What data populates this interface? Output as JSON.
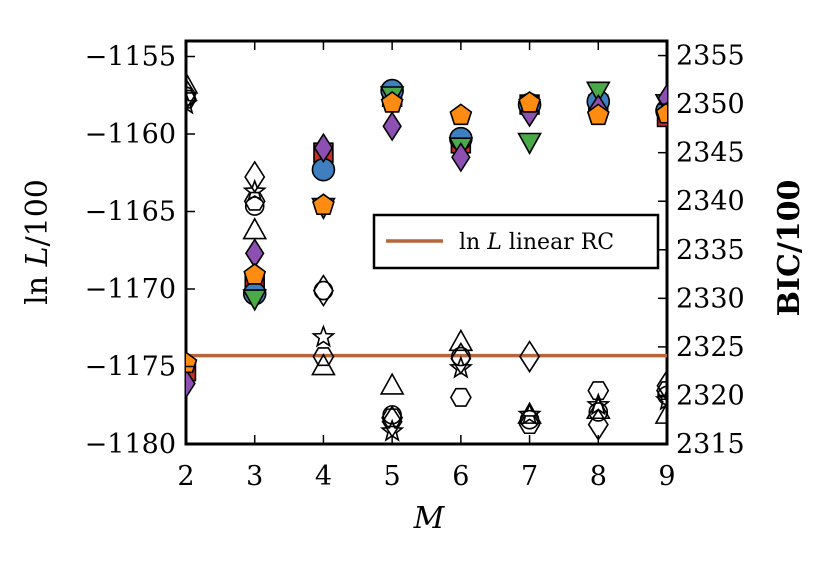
{
  "chart_data": {
    "type": "scatter",
    "x_axis": {
      "label": "M",
      "lim": [
        2,
        9
      ],
      "ticks": [
        2,
        3,
        4,
        5,
        6,
        7,
        8,
        9
      ],
      "tick_labels": [
        "2",
        "3",
        "4",
        "5",
        "6",
        "7",
        "8",
        "9"
      ]
    },
    "y_left_axis": {
      "label": "ln L/100",
      "lim": [
        -1180,
        -1154
      ],
      "ticks": [
        -1180,
        -1175,
        -1170,
        -1165,
        -1160,
        -1155
      ],
      "tick_labels": [
        "−1180",
        "−1175",
        "−1170",
        "−1165",
        "−1160",
        "−1155"
      ]
    },
    "y_right_axis": {
      "label": "BIC/100",
      "lim": [
        2315,
        2356.5
      ],
      "ticks": [
        2315,
        2320,
        2325,
        2330,
        2335,
        2340,
        2345,
        2350,
        2355
      ],
      "tick_labels": [
        "2315",
        "2320",
        "2325",
        "2330",
        "2335",
        "2340",
        "2345",
        "2350",
        "2355"
      ]
    },
    "legend": {
      "placement": "center-right",
      "entries": [
        {
          "label": "ln L linear RC",
          "color": "#b5663a"
        }
      ]
    },
    "reference_line": {
      "name": "ln L linear RC",
      "y": -1174.3,
      "color": "#b5663a"
    },
    "colors": {
      "blue": "#3f7fbf",
      "red": "#cf2b2b",
      "green": "#4aaa4a",
      "purple": "#8e4fb2",
      "orange": "#ff8c12",
      "axis": "#000000"
    },
    "filled_series_lnL": [
      {
        "marker": "square",
        "color": "red",
        "points": [
          [
            2,
            -1175.3
          ],
          [
            3,
            -1169.5
          ],
          [
            4,
            -1161.2
          ],
          [
            5,
            -1157.6
          ],
          [
            6,
            -1160.6
          ],
          [
            7,
            -1158.1
          ],
          [
            8,
            -1158.1
          ],
          [
            9,
            -1158.9
          ]
        ]
      },
      {
        "marker": "circle",
        "color": "blue",
        "points": [
          [
            3,
            -1170.3
          ],
          [
            4,
            -1162.3
          ],
          [
            5,
            -1157.2
          ],
          [
            6,
            -1160.3
          ],
          [
            7,
            -1158.1
          ],
          [
            8,
            -1157.9
          ],
          [
            9,
            -1158.5
          ]
        ]
      },
      {
        "marker": "triangle-down",
        "color": "green",
        "points": [
          [
            3,
            -1170.6
          ],
          [
            4,
            -1164.7
          ],
          [
            5,
            -1157.5
          ],
          [
            6,
            -1160.8
          ],
          [
            7,
            -1160.5
          ],
          [
            8,
            -1157.2
          ],
          [
            9,
            -1158.0
          ]
        ]
      },
      {
        "marker": "diamond",
        "color": "purple",
        "points": [
          [
            2,
            -1176.1
          ],
          [
            3,
            -1167.7
          ],
          [
            4,
            -1160.9
          ],
          [
            5,
            -1159.5
          ],
          [
            6,
            -1161.5
          ],
          [
            7,
            -1158.6
          ],
          [
            8,
            -1158.4
          ],
          [
            9,
            -1157.7
          ]
        ]
      },
      {
        "marker": "pentagon",
        "color": "orange",
        "points": [
          [
            2,
            -1174.8
          ],
          [
            3,
            -1169.1
          ],
          [
            4,
            -1164.6
          ],
          [
            5,
            -1158.0
          ],
          [
            6,
            -1158.8
          ],
          [
            7,
            -1158.0
          ],
          [
            8,
            -1158.8
          ],
          [
            9,
            -1158.7
          ]
        ]
      }
    ],
    "open_series_BIC": [
      {
        "marker": "diamond",
        "points": [
          [
            2,
            2351.0
          ],
          [
            3,
            2342.5
          ],
          [
            4,
            2330.8
          ],
          [
            5,
            2317.3
          ],
          [
            6,
            2323.8
          ],
          [
            7,
            2324.0
          ],
          [
            8,
            2317.0
          ],
          [
            9,
            2321.0
          ]
        ]
      },
      {
        "marker": "triangle-up",
        "points": [
          [
            2,
            2352.0
          ],
          [
            3,
            2337.0
          ],
          [
            4,
            2323.0
          ],
          [
            5,
            2321.0
          ],
          [
            6,
            2325.5
          ],
          [
            7,
            2318.0
          ],
          [
            8,
            2318.5
          ],
          [
            9,
            2318.0
          ]
        ]
      },
      {
        "marker": "star",
        "points": [
          [
            2,
            2350.0
          ],
          [
            3,
            2341.0
          ],
          [
            4,
            2326.0
          ],
          [
            5,
            2316.3
          ],
          [
            6,
            2322.8
          ],
          [
            7,
            2318.0
          ],
          [
            8,
            2319.0
          ],
          [
            9,
            2319.5
          ]
        ]
      },
      {
        "marker": "hexagon",
        "points": [
          [
            2,
            2350.5
          ],
          [
            3,
            2340.0
          ],
          [
            4,
            2324.0
          ],
          [
            5,
            2317.7
          ],
          [
            6,
            2319.8
          ],
          [
            7,
            2317.0
          ],
          [
            8,
            2320.5
          ],
          [
            9,
            2320.5
          ]
        ]
      },
      {
        "marker": "circle",
        "points": [
          [
            2,
            2350.8
          ],
          [
            3,
            2339.5
          ],
          [
            4,
            2330.8
          ],
          [
            5,
            2318.0
          ],
          [
            6,
            2324.0
          ],
          [
            7,
            2317.5
          ],
          [
            8,
            2318.3
          ],
          [
            9,
            2320.0
          ]
        ]
      }
    ]
  }
}
